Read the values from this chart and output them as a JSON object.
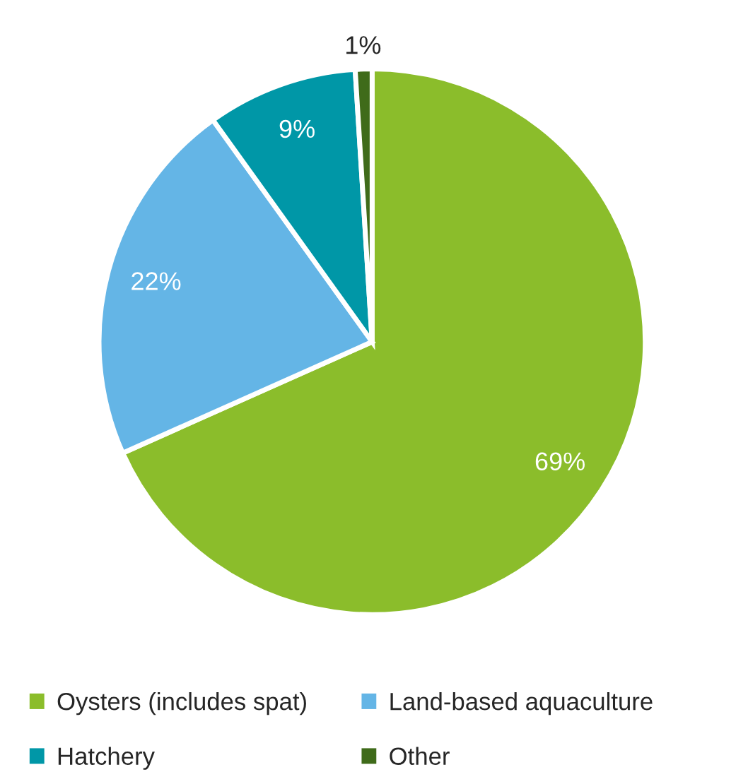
{
  "chart_data": {
    "type": "pie",
    "categories": [
      "Oysters (includes spat)",
      "Land-based aquaculture",
      "Hatchery",
      "Other"
    ],
    "values": [
      69,
      22,
      9,
      1
    ],
    "colors": [
      "#8bbd2b",
      "#64b5e6",
      "#0097a7",
      "#3f6b1a"
    ],
    "value_labels": [
      "69%",
      "22%",
      "9%",
      "1%"
    ],
    "legend": "bottom"
  }
}
